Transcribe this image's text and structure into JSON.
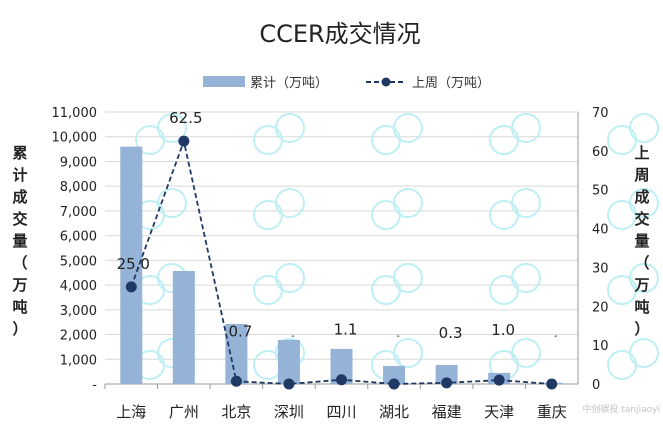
{
  "chart_data": {
    "type": "bar+line",
    "title": "CCER成交情况",
    "categories": [
      "上海",
      "广州",
      "北京",
      "深圳",
      "四川",
      "湖北",
      "福建",
      "天津",
      "重庆"
    ],
    "series": [
      {
        "name": "累计（万吨）",
        "type": "bar",
        "axis": "left",
        "color": "#95B3D7",
        "values": [
          9600,
          4570,
          2430,
          1780,
          1420,
          730,
          770,
          450,
          50
        ]
      },
      {
        "name": "上周（万吨）",
        "type": "line",
        "axis": "right",
        "color": "#1F3864",
        "values": [
          25.0,
          62.5,
          0.7,
          0,
          1.1,
          0,
          0.3,
          1.0,
          0
        ],
        "labels": [
          "25.0",
          "62.5",
          "0.7",
          "-",
          "1.1",
          "-",
          "0.3",
          "1.0",
          "-"
        ]
      }
    ],
    "ylabel_left": "累计成交量（万吨）",
    "ylabel_right": "上周成交量（万吨）",
    "ylim_left": [
      0,
      11000
    ],
    "yticks_left": [
      "-",
      "1,000",
      "2,000",
      "3,000",
      "4,000",
      "5,000",
      "6,000",
      "7,000",
      "8,000",
      "9,000",
      "10,000",
      "11,000"
    ],
    "ylim_right": [
      0,
      70
    ],
    "yticks_right": [
      "0",
      "10",
      "20",
      "30",
      "40",
      "50",
      "60",
      "70"
    ],
    "grid": true,
    "legend": "top-center"
  },
  "watermark": "中创碳投 tanjiaoyi"
}
